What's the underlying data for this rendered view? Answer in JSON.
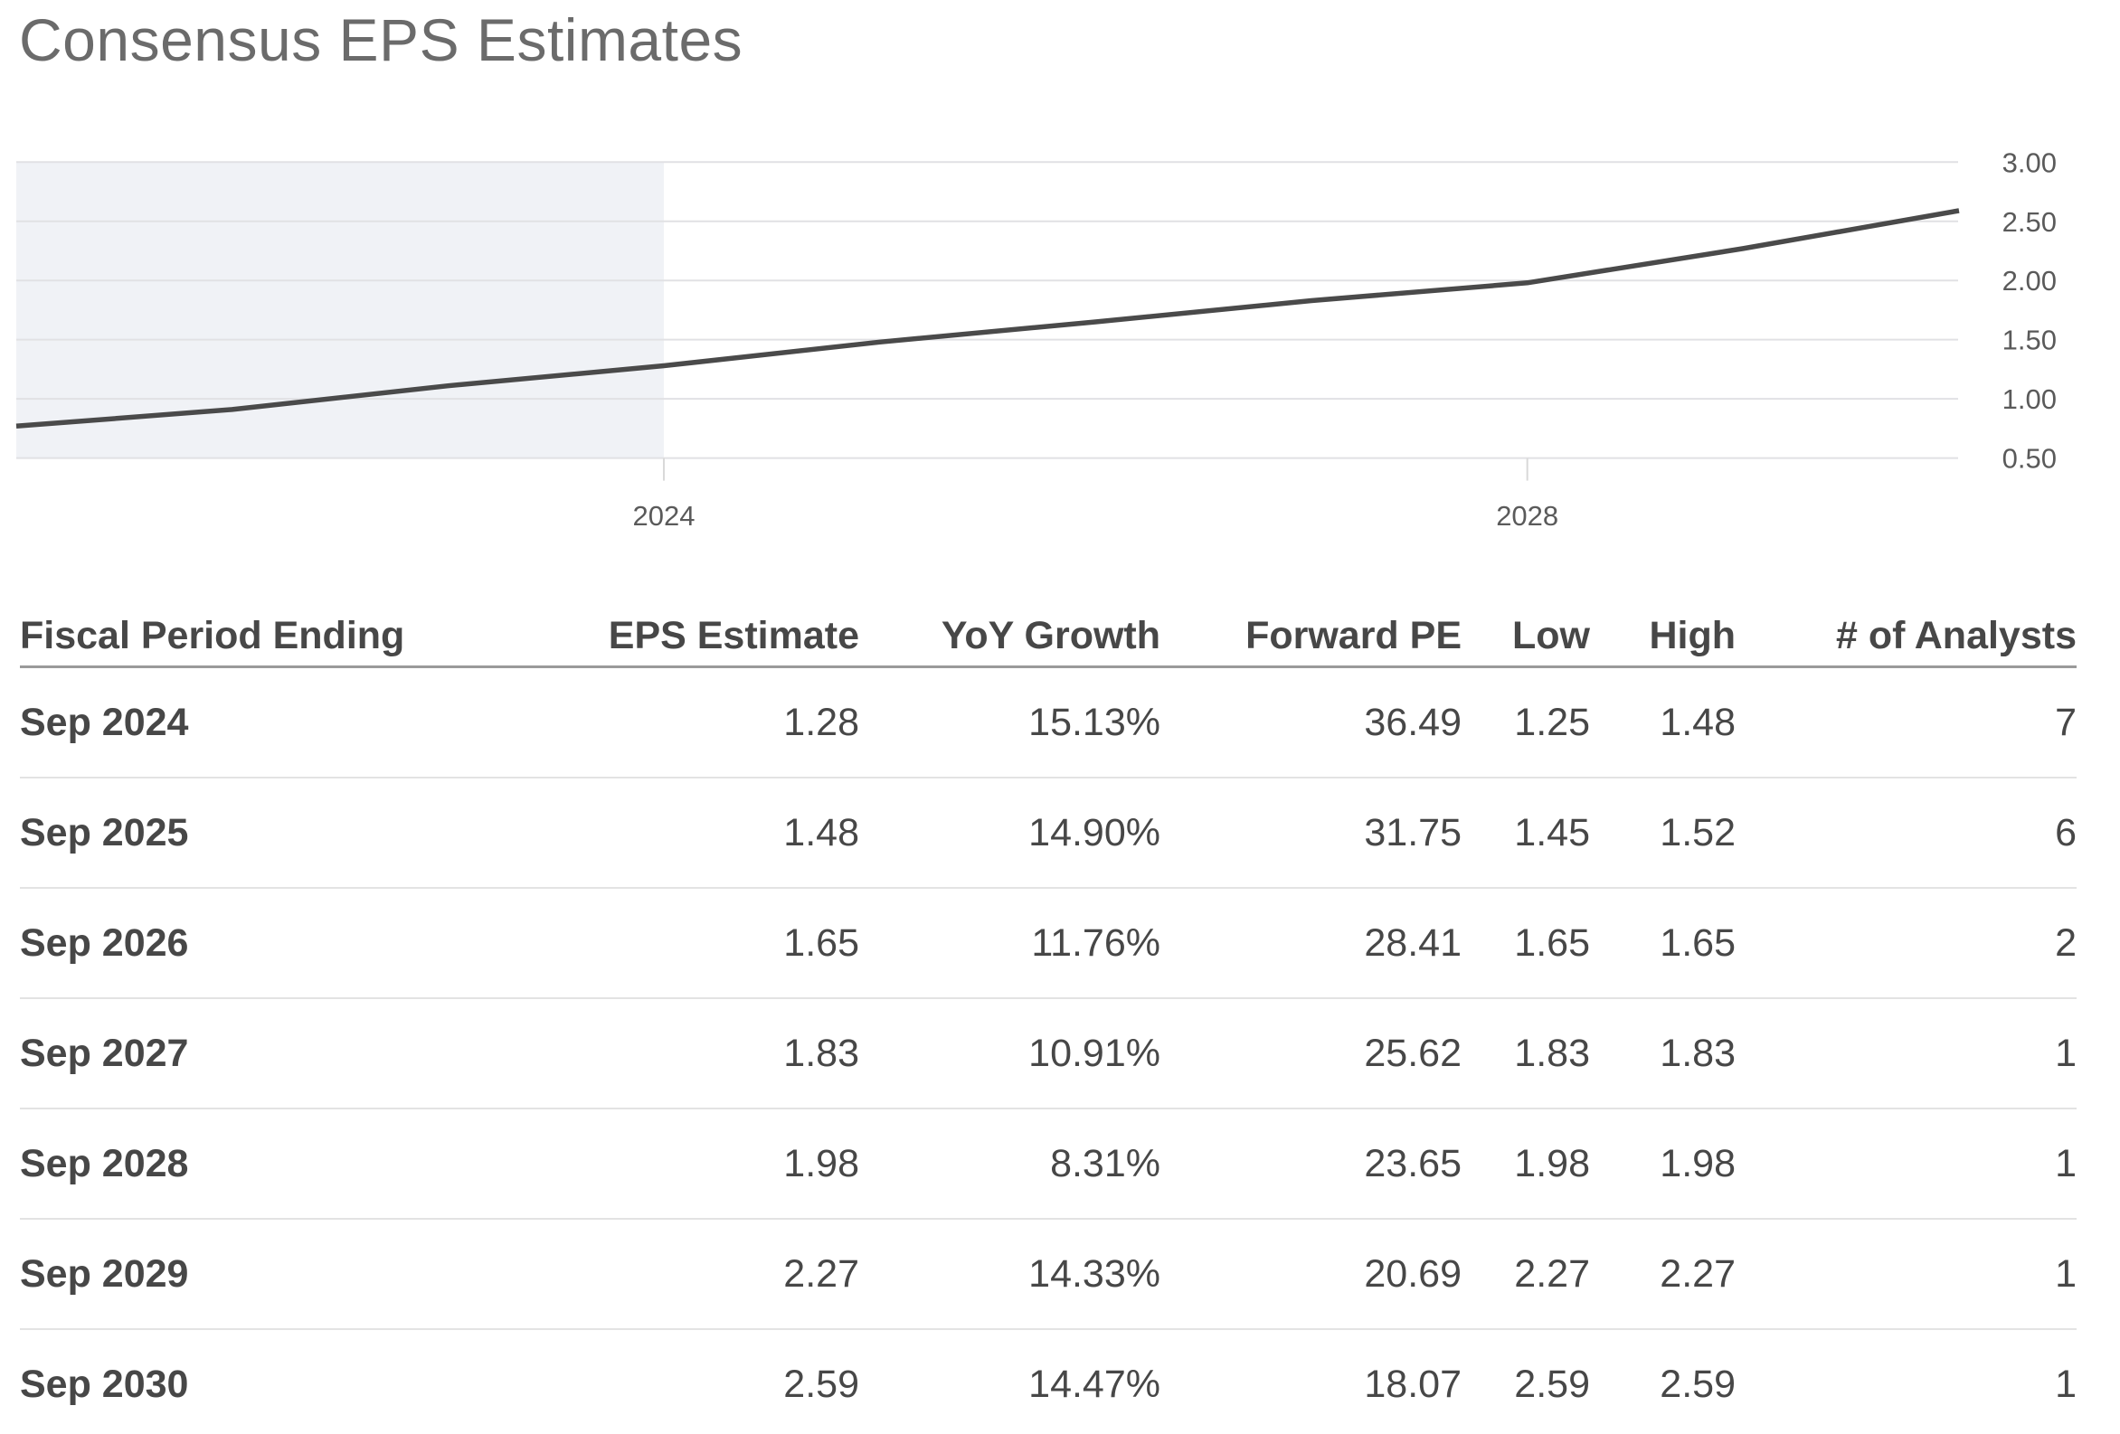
{
  "title": "Consensus EPS Estimates",
  "chart_data": {
    "type": "line",
    "title": "Consensus EPS Estimates",
    "x": [
      2021,
      2022,
      2023,
      2024,
      2025,
      2026,
      2027,
      2028,
      2029,
      2030
    ],
    "series": [
      {
        "name": "Consensus EPS Estimate",
        "values": [
          0.77,
          0.91,
          1.11,
          1.28,
          1.48,
          1.65,
          1.83,
          1.98,
          2.27,
          2.59
        ]
      }
    ],
    "xlabel": "",
    "ylabel": "",
    "xlim": [
      2021,
      2030
    ],
    "x_ticks": [
      2024,
      2028
    ],
    "x_tick_labels": [
      "2024",
      "2028"
    ],
    "y_ticks": [
      0.5,
      1.0,
      1.5,
      2.0,
      2.5,
      3.0
    ],
    "y_tick_labels": [
      "0.50",
      "1.00",
      "1.50",
      "2.00",
      "2.50",
      "3.00"
    ],
    "y_axis_side": "right",
    "grid": "horizontal",
    "legend": false,
    "line_color": "#4a4a4a",
    "grid_color": "#e1e1e4",
    "tick_color": "#d9d9d9",
    "highlight_region": {
      "x_from": 2021,
      "x_to": 2024,
      "color": "#f0f2f6",
      "label": "historical period"
    }
  },
  "table": {
    "columns": [
      {
        "label": "Fiscal Period Ending",
        "align": "left"
      },
      {
        "label": "EPS Estimate",
        "align": "right"
      },
      {
        "label": "YoY Growth",
        "align": "right"
      },
      {
        "label": "Forward PE",
        "align": "right"
      },
      {
        "label": "Low",
        "align": "right"
      },
      {
        "label": "High",
        "align": "right"
      },
      {
        "label": "# of Analysts",
        "align": "right"
      }
    ],
    "rows": [
      [
        "Sep 2024",
        "1.28",
        "15.13%",
        "36.49",
        "1.25",
        "1.48",
        "7"
      ],
      [
        "Sep 2025",
        "1.48",
        "14.90%",
        "31.75",
        "1.45",
        "1.52",
        "6"
      ],
      [
        "Sep 2026",
        "1.65",
        "11.76%",
        "28.41",
        "1.65",
        "1.65",
        "2"
      ],
      [
        "Sep 2027",
        "1.83",
        "10.91%",
        "25.62",
        "1.83",
        "1.83",
        "1"
      ],
      [
        "Sep 2028",
        "1.98",
        "8.31%",
        "23.65",
        "1.98",
        "1.98",
        "1"
      ],
      [
        "Sep 2029",
        "2.27",
        "14.33%",
        "20.69",
        "2.27",
        "2.27",
        "1"
      ],
      [
        "Sep 2030",
        "2.59",
        "14.47%",
        "18.07",
        "2.59",
        "2.59",
        "1"
      ]
    ]
  }
}
